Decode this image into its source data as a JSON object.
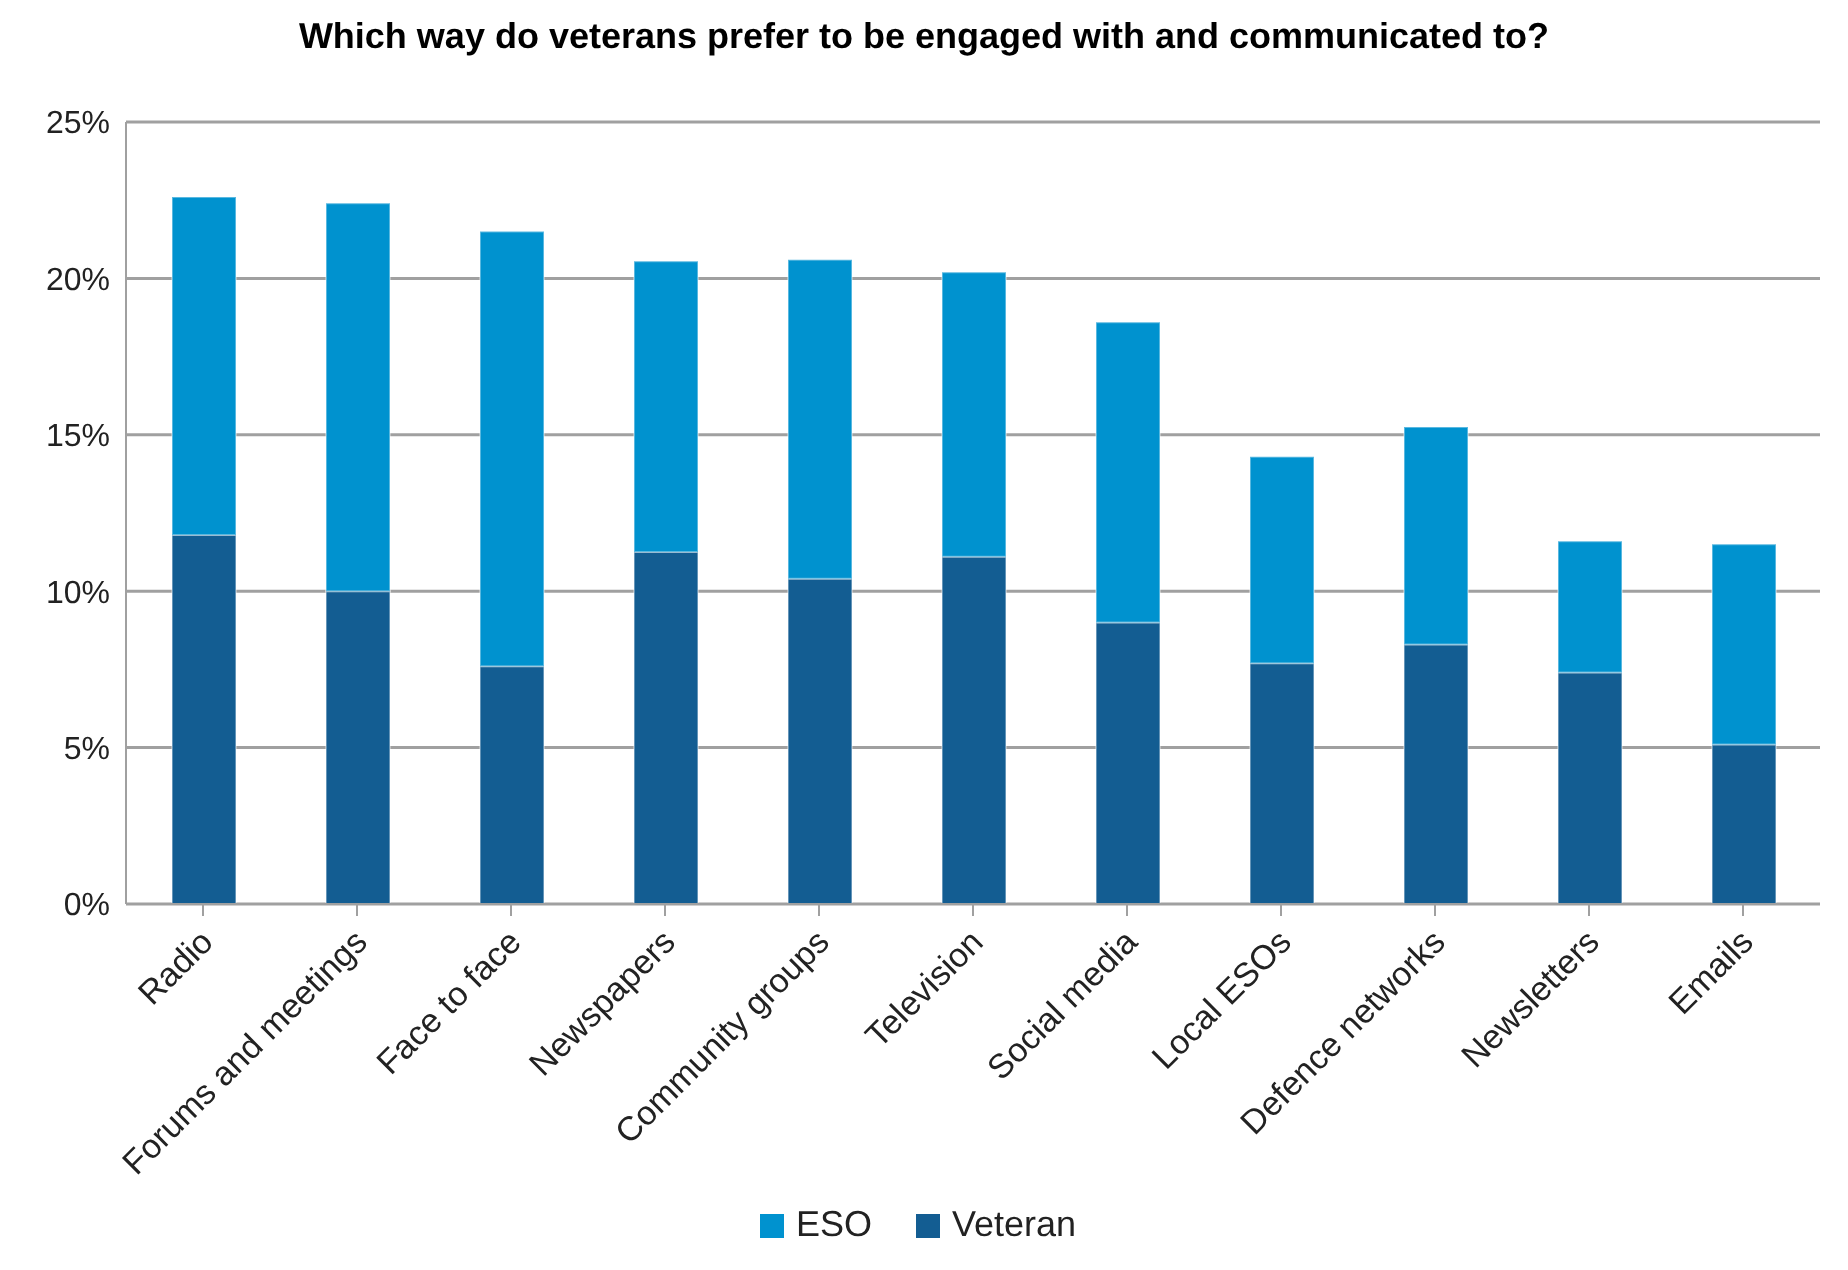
{
  "chart_data": {
    "type": "bar",
    "title": "Which way do veterans prefer to be engaged with and communicated to?",
    "categories": [
      "Radio",
      "Forums and meetings",
      "Face to face",
      "Newspapers",
      "Community groups",
      "Television",
      "Social media",
      "Local ESOs",
      "Defence networks",
      "Newsletters",
      "Emails"
    ],
    "stacked": true,
    "series": [
      {
        "name": "Veteran",
        "color": "#135d92",
        "values": [
          11.8,
          10.0,
          7.6,
          11.25,
          10.4,
          11.1,
          9.0,
          7.7,
          8.3,
          7.4,
          5.1
        ]
      },
      {
        "name": "ESO",
        "color": "#0092cf",
        "values": [
          10.8,
          12.4,
          13.9,
          9.3,
          10.2,
          9.1,
          9.6,
          6.6,
          6.95,
          4.2,
          6.4
        ]
      }
    ],
    "ylim": [
      0,
      25
    ],
    "yticks": [
      {
        "value": 0,
        "label": "0%"
      },
      {
        "value": 5,
        "label": "5%"
      },
      {
        "value": 10,
        "label": "10%"
      },
      {
        "value": 15,
        "label": "15%"
      },
      {
        "value": 20,
        "label": "20%"
      },
      {
        "value": 25,
        "label": "25%"
      }
    ],
    "grid": "y",
    "legend": "bottom"
  }
}
